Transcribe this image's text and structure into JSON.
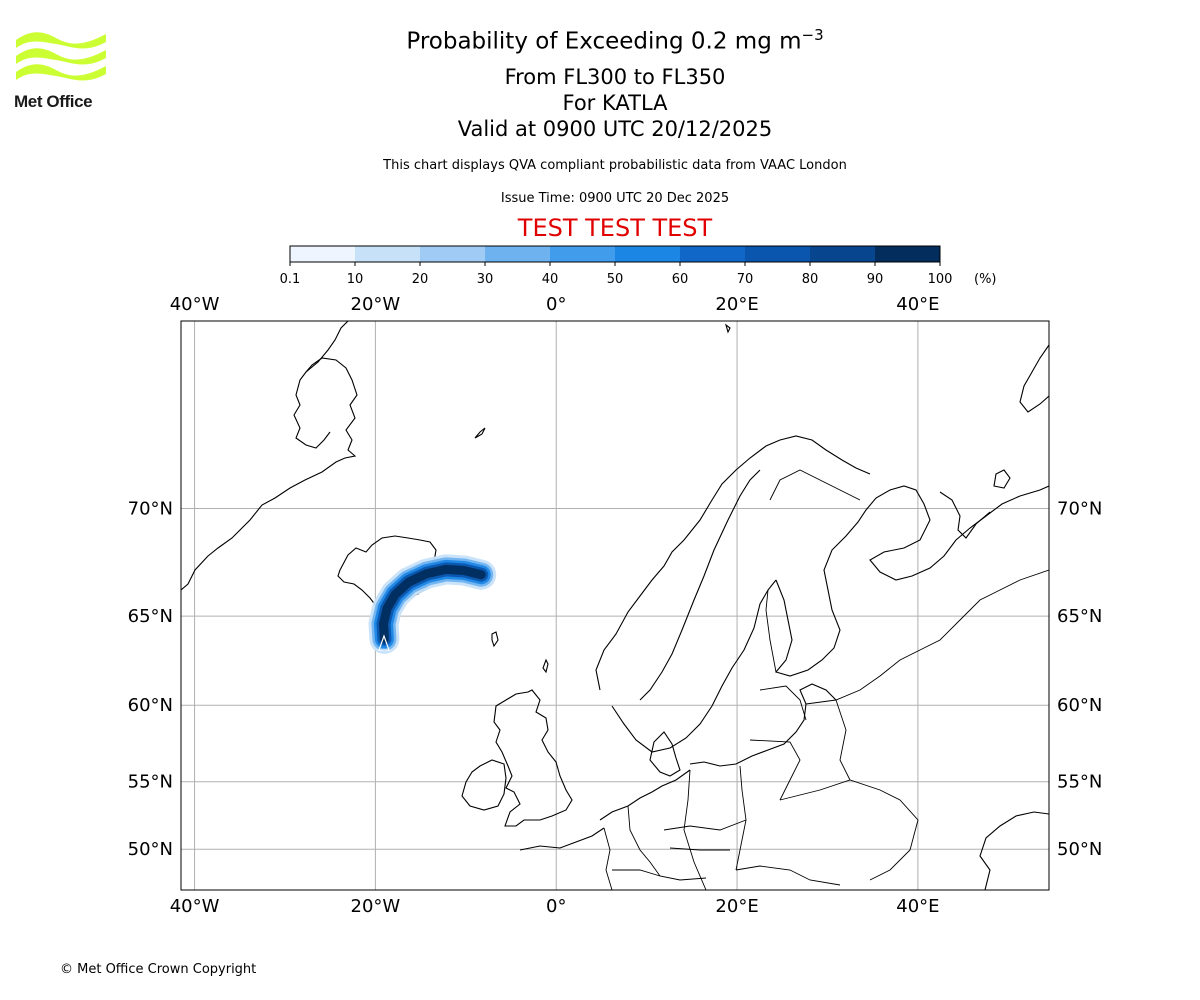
{
  "header": {
    "title_main": "Probability of Exceeding 0.2 mg m",
    "title_exp": "−3",
    "line2": "From FL300 to FL350",
    "line3": "For KATLA",
    "line4": "Valid at 0900 UTC 20/12/2025",
    "note": "This chart displays QVA compliant probabilistic data from VAAC London",
    "issue": "Issue Time: 0900 UTC 20 Dec 2025",
    "test": "TEST TEST TEST"
  },
  "logo": {
    "text": "Met Office",
    "color": "#ccff33"
  },
  "footer": {
    "copyright": "© Met Office Crown Copyright"
  },
  "colorbar": {
    "ticks": [
      "0.1",
      "10",
      "20",
      "30",
      "40",
      "50",
      "60",
      "70",
      "80",
      "90",
      "100"
    ],
    "unit": "(%)",
    "colors": [
      "#eef5fe",
      "#c7e1f9",
      "#9fcbf4",
      "#6eb2f0",
      "#429cec",
      "#1c86e4",
      "#1067c8",
      "#0a55ad",
      "#07468f",
      "#022d5d"
    ]
  },
  "chart_data": {
    "type": "map",
    "projection": "mercator",
    "lon_range": [
      -41.5,
      54.5
    ],
    "lat_range": [
      46.7,
      76.5
    ],
    "lon_ticks": [
      {
        "value": -40,
        "label": "40°W"
      },
      {
        "value": -20,
        "label": "20°W"
      },
      {
        "value": 0,
        "label": "0°"
      },
      {
        "value": 20,
        "label": "20°E"
      },
      {
        "value": 40,
        "label": "40°E"
      }
    ],
    "lat_ticks": [
      {
        "value": 70,
        "label": "70°N"
      },
      {
        "value": 65,
        "label": "65°N"
      },
      {
        "value": 60,
        "label": "60°N"
      },
      {
        "value": 55,
        "label": "55°N"
      },
      {
        "value": 50,
        "label": "50°N"
      }
    ],
    "grid": true,
    "volcano": {
      "name": "KATLA",
      "lon": -19.05,
      "lat": 63.63
    },
    "plume": [
      {
        "lon": -19.0,
        "lat": 63.8
      },
      {
        "lon": -19.1,
        "lat": 64.6
      },
      {
        "lon": -18.7,
        "lat": 65.4
      },
      {
        "lon": -17.8,
        "lat": 66.1
      },
      {
        "lon": -16.3,
        "lat": 66.7
      },
      {
        "lon": -14.3,
        "lat": 67.1
      },
      {
        "lon": -12.2,
        "lat": 67.3
      },
      {
        "lon": -10.2,
        "lat": 67.25
      },
      {
        "lon": -8.3,
        "lat": 67.05
      }
    ]
  }
}
